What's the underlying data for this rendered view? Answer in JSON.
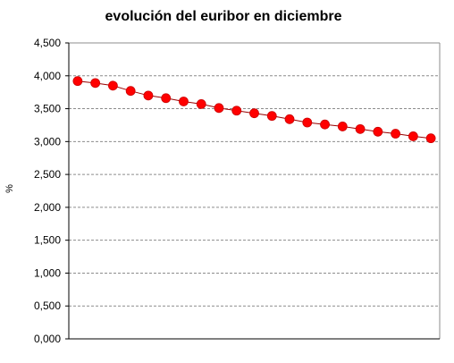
{
  "chart_data": {
    "type": "line",
    "title": "evolución del euribor en diciembre",
    "xlabel": "",
    "ylabel": "%",
    "ylim": [
      0,
      4.5
    ],
    "yticks": [
      "0,000",
      "0,500",
      "1,000",
      "1,500",
      "2,000",
      "2,500",
      "3,000",
      "3,500",
      "4,000",
      "4,500"
    ],
    "grid": true,
    "series": [
      {
        "values": [
          3.92,
          3.89,
          3.85,
          3.77,
          3.7,
          3.66,
          3.61,
          3.57,
          3.51,
          3.47,
          3.43,
          3.39,
          3.34,
          3.29,
          3.26,
          3.23,
          3.19,
          3.15,
          3.12,
          3.08,
          3.05
        ],
        "color": "#ff0000",
        "line_color": "#990000"
      }
    ]
  }
}
